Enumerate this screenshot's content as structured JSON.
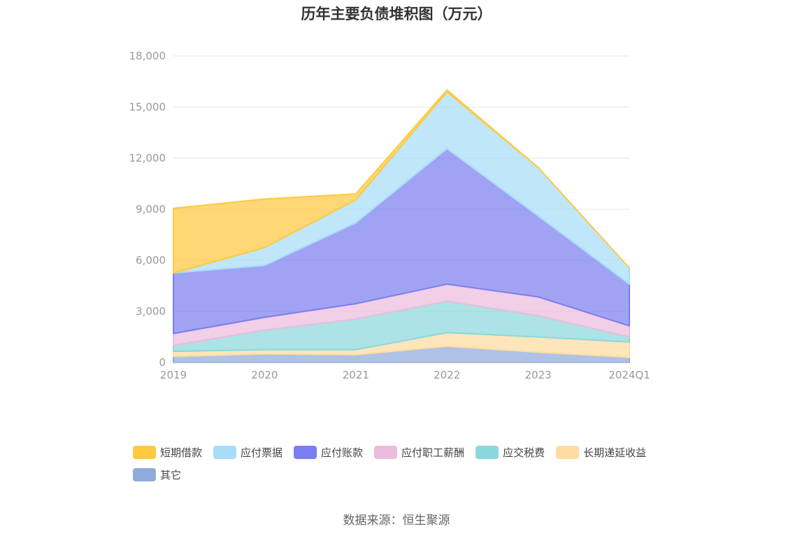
{
  "chart_data": {
    "type": "area",
    "stacked": true,
    "title": "历年主要负债堆积图（万元）",
    "categories": [
      "2019",
      "2020",
      "2021",
      "2022",
      "2023",
      "2024Q1"
    ],
    "ylim": [
      0,
      18000
    ],
    "yticks": [
      "0",
      "3,000",
      "6,000",
      "9,000",
      "12,000",
      "15,000",
      "18,000"
    ],
    "grid": true,
    "legend_position": "bottom",
    "series": [
      {
        "name": "其它",
        "color": "#8fabdc",
        "values": [
          350,
          500,
          450,
          950,
          600,
          300
        ]
      },
      {
        "name": "长期递延收益",
        "color": "#ffdca0",
        "values": [
          300,
          250,
          300,
          800,
          900,
          900
        ]
      },
      {
        "name": "应交税费",
        "color": "#8ad8dc",
        "values": [
          350,
          1150,
          1800,
          1850,
          1250,
          300
        ]
      },
      {
        "name": "应付职工薪酬",
        "color": "#ebbcdd",
        "values": [
          700,
          750,
          900,
          1000,
          1100,
          650
        ]
      },
      {
        "name": "应付账款",
        "color": "#7b7ef0",
        "values": [
          3550,
          3050,
          4750,
          7950,
          4750,
          2450
        ]
      },
      {
        "name": "应付票据",
        "color": "#a8dcf8",
        "values": [
          0,
          1050,
          1350,
          3350,
          2850,
          950
        ]
      },
      {
        "name": "短期借款",
        "color": "#ffc940",
        "values": [
          3800,
          2850,
          350,
          100,
          0,
          0
        ]
      }
    ],
    "legend_order": [
      "短期借款",
      "应付票据",
      "应付账款",
      "应付职工薪酬",
      "应交税费",
      "长期递延收益",
      "其它"
    ]
  },
  "source": "数据来源：恒生聚源"
}
